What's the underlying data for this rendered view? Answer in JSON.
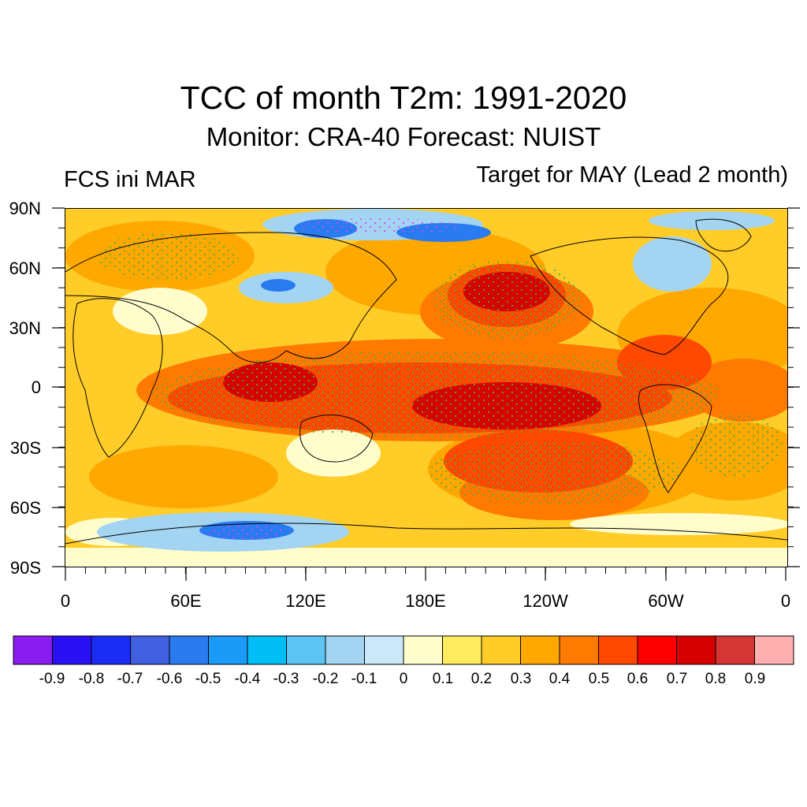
{
  "title": "TCC of month T2m: 1991-2020",
  "subtitle": "Monitor: CRA-40   Forecast: NUIST",
  "left_label": "FCS ini MAR",
  "right_label": "Target for MAY (Lead 2 month)",
  "y_axis_labels": [
    "90N",
    "60N",
    "30N",
    "0",
    "30S",
    "60S",
    "90S"
  ],
  "x_axis_labels": [
    "0",
    "60E",
    "120E",
    "180E",
    "120W",
    "60W",
    "0"
  ],
  "colorbar": {
    "colors": [
      "#8a1cf0",
      "#2a10f5",
      "#1b2cf5",
      "#4060e0",
      "#2a7bf0",
      "#1a9bf7",
      "#00bff7",
      "#5cc5f5",
      "#a3d4f2",
      "#cae8f7",
      "#fffdcc",
      "#ffec5e",
      "#ffcc28",
      "#ffa800",
      "#ff7a00",
      "#ff4800",
      "#ff0000",
      "#d60000",
      "#d63535",
      "#ffb0b0"
    ],
    "labels": [
      "-0.9",
      "-0.8",
      "-0.7",
      "-0.6",
      "-0.5",
      "-0.4",
      "-0.3",
      "-0.2",
      "-0.1",
      "0",
      "0.1",
      "0.2",
      "0.3",
      "0.4",
      "0.5",
      "0.6",
      "0.7",
      "0.8",
      "0.9"
    ]
  },
  "map_colors": {
    "land_line": "#000000",
    "significance_dot": "#3cb44b",
    "base_field": "#ffcc28"
  }
}
